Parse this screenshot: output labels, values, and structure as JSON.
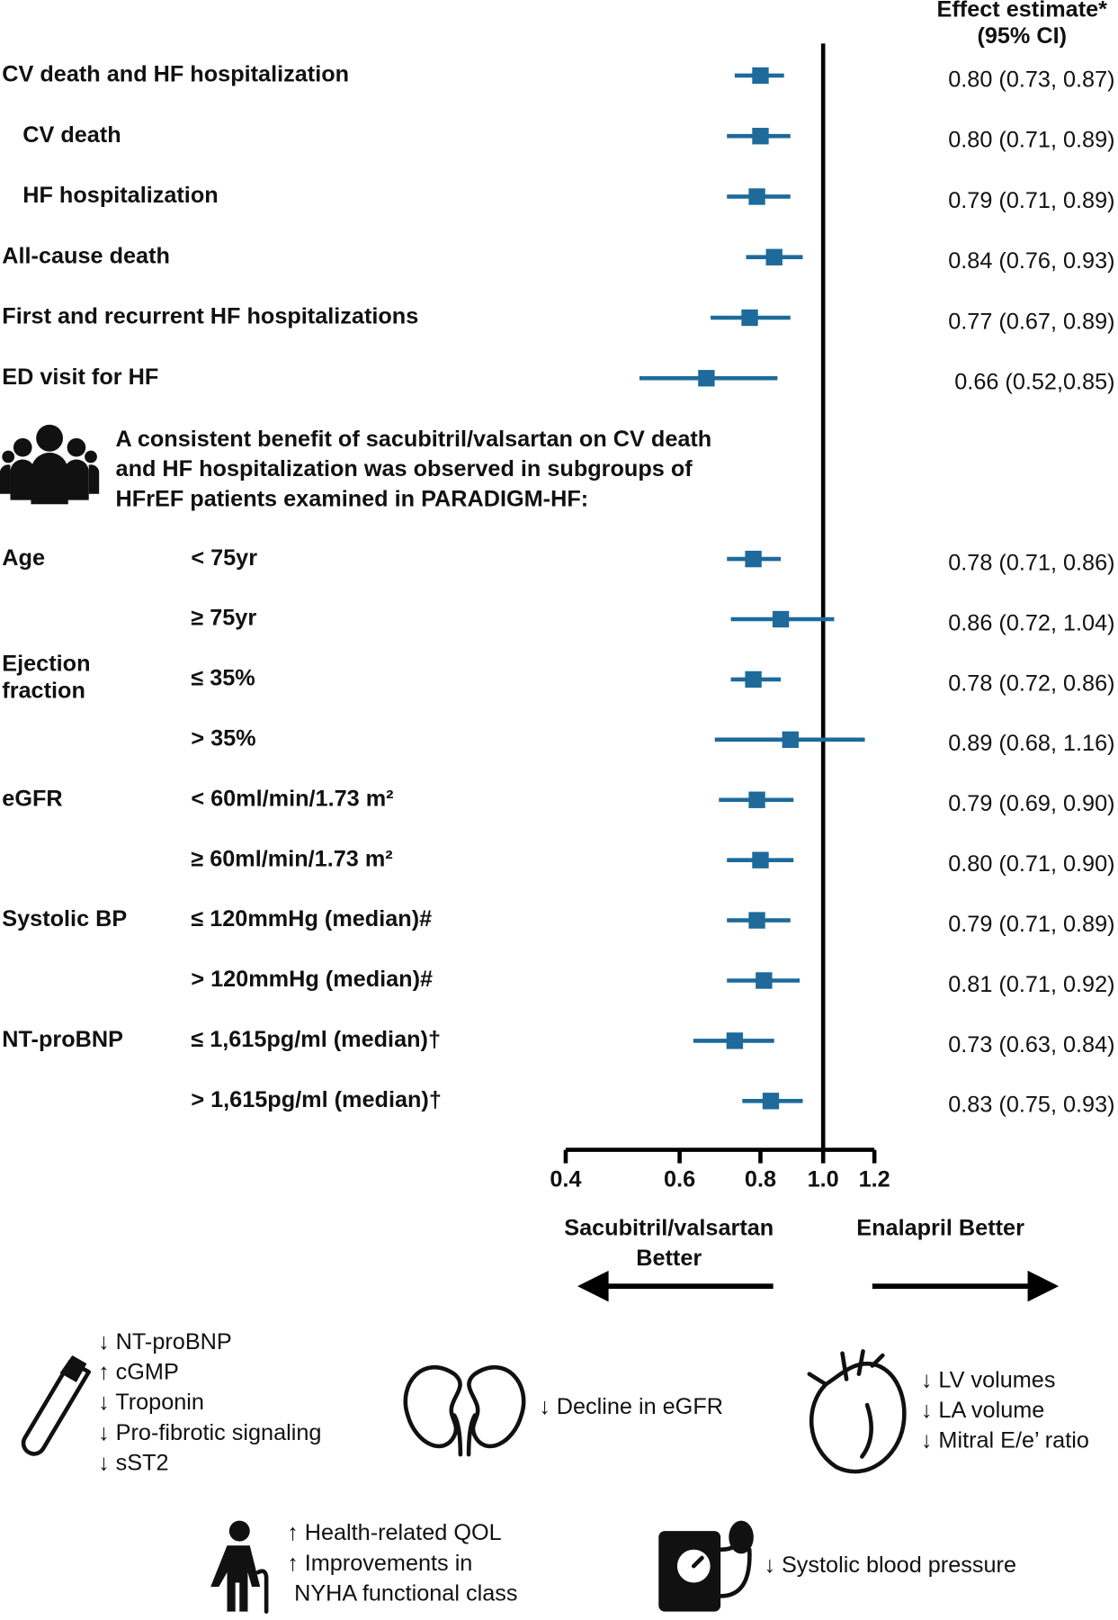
{
  "chart_data": {
    "type": "forest",
    "header": [
      "Effect estimate*",
      "(95% CI)"
    ],
    "categories": [
      "CV death and HF hospitalization",
      "CV death",
      "HF hospitalization",
      "All-cause death",
      "First and recurrent HF hospitalizations",
      "ED visit for HF",
      "Age",
      null,
      [
        "Ejection",
        "fraction"
      ],
      null,
      "eGFR",
      null,
      "Systolic BP",
      null,
      "NT-proBNP",
      null
    ],
    "subgroups": [
      null,
      null,
      null,
      null,
      null,
      null,
      "< 75yr",
      "≥ 75yr",
      "≤ 35%",
      "> 35%",
      "< 60ml/min/1.73 m²",
      "≥ 60ml/min/1.73 m²",
      "≤ 120mmHg (median)#",
      "> 120mmHg (median)#",
      "≤ 1,615pg/ml (median)†",
      "> 1,615pg/ml (median)†"
    ],
    "values": [
      0.8,
      0.8,
      0.79,
      0.84,
      0.77,
      0.66,
      0.78,
      0.86,
      0.78,
      0.89,
      0.79,
      0.8,
      0.79,
      0.81,
      0.73,
      0.83
    ],
    "lower": [
      0.73,
      0.71,
      0.71,
      0.76,
      0.67,
      0.52,
      0.71,
      0.72,
      0.72,
      0.68,
      0.69,
      0.71,
      0.71,
      0.71,
      0.63,
      0.75
    ],
    "upper": [
      0.87,
      0.89,
      0.89,
      0.93,
      0.89,
      0.85,
      0.86,
      1.04,
      0.86,
      1.16,
      0.9,
      0.9,
      0.89,
      0.92,
      0.84,
      0.93
    ],
    "value_labels": [
      "0.80 (0.73, 0.87)",
      "0.80 (0.71, 0.89)",
      "0.79 (0.71, 0.89)",
      "0.84 (0.76, 0.93)",
      "0.77 (0.67, 0.89)",
      "0.66 (0.52,0.85)",
      "0.78 (0.71, 0.86)",
      "0.86 (0.72, 1.04)",
      "0.78 (0.72, 0.86)",
      "0.89 (0.68, 1.16)",
      "0.79 (0.69, 0.90)",
      "0.80 (0.71, 0.90)",
      "0.79 (0.71, 0.89)",
      "0.81 (0.71, 0.92)",
      "0.73 (0.63, 0.84)",
      "0.83 (0.75, 0.93)"
    ],
    "color": "#1d6a9b",
    "xscale": "log",
    "xlim": [
      0.4,
      1.2
    ],
    "xticks": [
      0.4,
      0.6,
      0.8,
      {
        "value": 1,
        "label": "1.0"
      },
      1.2
    ],
    "note": [
      "A consistent benefit of sacubitril/valsartan on CV death",
      "and HF hospitalization was observed in subgroups of",
      "HFrEF patients examined in PARADIGM-HF:"
    ],
    "direction_labels": [
      [
        "Sacubitril/valsartan",
        "Better"
      ],
      [
        "Enalapril Better"
      ]
    ],
    "effects": [
      [
        "↓ NT-proBNP",
        "↑ cGMP",
        "↓ Troponin",
        "↓ Pro-fibrotic signaling",
        "↓ sST2"
      ],
      [
        "↓ Decline in eGFR"
      ],
      [
        "↓ LV volumes",
        "↓ LA volume",
        "↓ Mitral E/e’ ratio"
      ],
      [
        "↑ Health-related QOL",
        "↑ Improvements in",
        "NYHA functional class"
      ],
      [
        "↓ Systolic blood pressure"
      ]
    ]
  }
}
